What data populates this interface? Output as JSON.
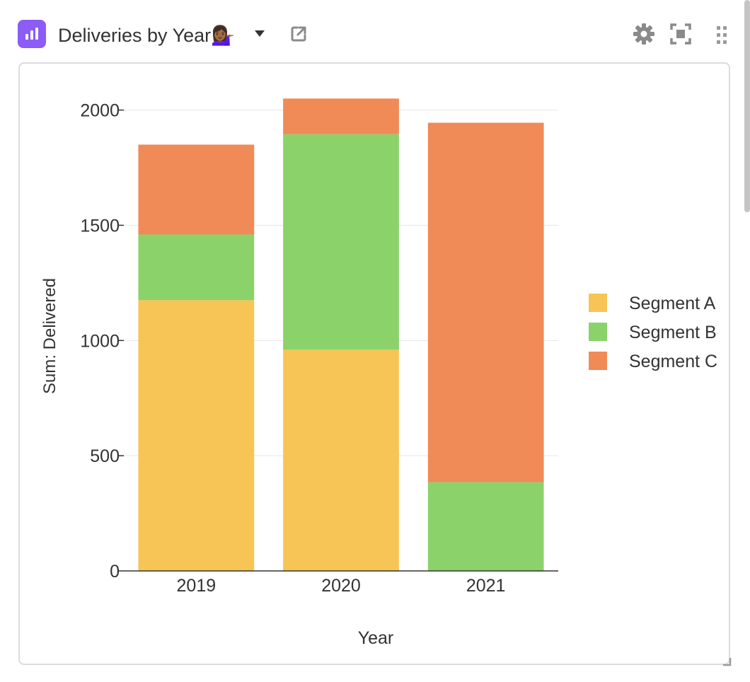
{
  "header": {
    "title": "Deliveries by Year",
    "title_emoji": "💁🏾‍♀️",
    "icons": [
      "bar-chart-app-icon",
      "chevron-down-icon",
      "external-link-icon",
      "gear-icon",
      "expand-icon",
      "drag-handle-icon"
    ]
  },
  "colors": {
    "app_icon": "#8b5cf6",
    "segment_a": "#f6c555",
    "segment_b": "#8bd26a",
    "segment_c": "#f08a57"
  },
  "chart_data": {
    "type": "bar",
    "stacked": true,
    "categories": [
      "2019",
      "2020",
      "2021"
    ],
    "series": [
      {
        "name": "Segment A",
        "values": [
          1175,
          960,
          0
        ],
        "color": "#f6c555"
      },
      {
        "name": "Segment B",
        "values": [
          285,
          935,
          385
        ],
        "color": "#8bd26a"
      },
      {
        "name": "Segment C",
        "values": [
          390,
          155,
          1560
        ],
        "color": "#f08a57"
      }
    ],
    "xlabel": "Year",
    "ylabel": "Sum: Delivered",
    "ylim": [
      0,
      2100
    ],
    "yticks": [
      0,
      500,
      1000,
      1500,
      2000
    ],
    "grid": true,
    "legend": "right"
  }
}
